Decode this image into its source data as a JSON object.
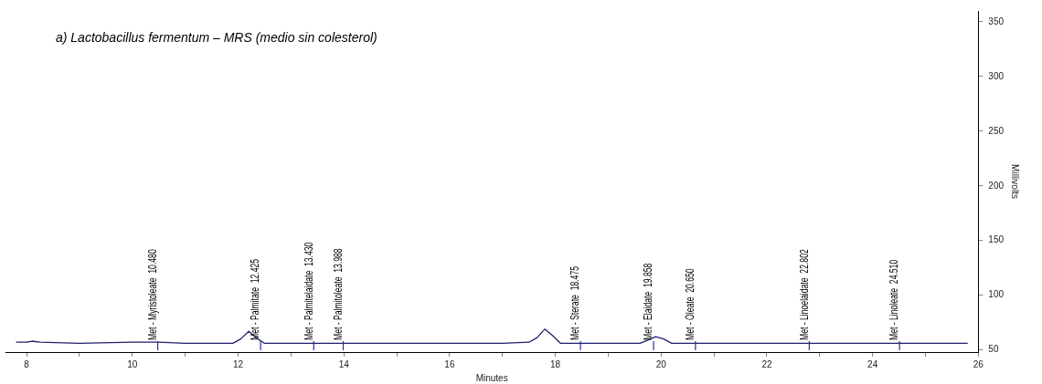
{
  "chart_data": {
    "type": "line",
    "title": "a) Lactobacillus fermentum – MRS (medio sin colesterol)",
    "xlabel": "Minutes",
    "ylabel": "Millivolts",
    "x": [
      7.8,
      8.0,
      8.1,
      8.25,
      9,
      10,
      10.5,
      11,
      11.9,
      12.05,
      12.2,
      12.35,
      12.5,
      13,
      14,
      15,
      16,
      17,
      17.5,
      17.65,
      17.8,
      17.95,
      18.1,
      19,
      19.6,
      19.75,
      19.9,
      20.05,
      20.2,
      21,
      22,
      23,
      24,
      25,
      25.8
    ],
    "series": [
      {
        "color": "#1f1f6e",
        "values": [
          57,
          57,
          58,
          57,
          56,
          57,
          57,
          56,
          56,
          60,
          67,
          61,
          56,
          56,
          56,
          56,
          56,
          56,
          57,
          61,
          69,
          63,
          56,
          56,
          56,
          59,
          62,
          60,
          56,
          56,
          56,
          56,
          56,
          56,
          56
        ]
      }
    ],
    "xlim": [
      7.6,
      26
    ],
    "xticks": [
      8,
      {
        "value": 9,
        "label": null
      },
      10,
      {
        "value": 11,
        "label": null
      },
      12,
      {
        "value": 13,
        "label": null
      },
      14,
      {
        "value": 15,
        "label": null
      },
      16,
      {
        "value": 17,
        "label": null
      },
      18,
      {
        "value": 19,
        "label": null
      },
      20,
      {
        "value": 21,
        "label": null
      },
      22,
      {
        "value": 23,
        "label": null
      },
      24,
      {
        "value": 25,
        "label": null
      },
      26
    ],
    "ylim": [
      48,
      360
    ],
    "yticks": [
      50,
      100,
      150,
      200,
      250,
      300,
      350
    ],
    "annotations": [
      {
        "text": "Met - Myristoleate  10.480",
        "x": 10.48,
        "y": 58
      },
      {
        "text": "Met - Palmitate  12.425",
        "x": 12.425,
        "y": 58
      },
      {
        "text": "Met - Palmitelaidate  13.430",
        "x": 13.43,
        "y": 58
      },
      {
        "text": "Met - Palmitoleate  13.988",
        "x": 13.988,
        "y": 58
      },
      {
        "text": "Met - Sterate  18.475",
        "x": 18.475,
        "y": 58
      },
      {
        "text": "Met - Elaidate  19.858",
        "x": 19.858,
        "y": 58
      },
      {
        "text": "Met - Oleate  20.650",
        "x": 20.65,
        "y": 58
      },
      {
        "text": "Met - Linoelaidate  22.802",
        "x": 22.802,
        "y": 58
      },
      {
        "text": "Met - Linoleate  24.510",
        "x": 24.51,
        "y": 58
      }
    ],
    "grid": false,
    "legend": false,
    "marker": "none",
    "line_style": "solid"
  }
}
